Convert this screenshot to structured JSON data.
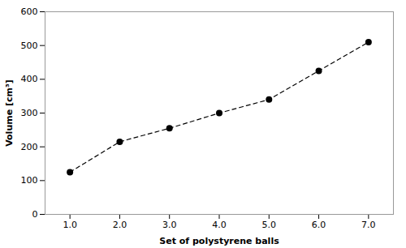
{
  "chart_data": {
    "type": "line",
    "x": [
      1,
      2,
      3,
      4,
      5,
      6,
      7
    ],
    "values": [
      125,
      215,
      255,
      300,
      340,
      425,
      510
    ],
    "xlabel": "Set of polystyrene balls",
    "ylabel": "Volume [cm³]",
    "xlim": [
      0.5,
      7.5
    ],
    "ylim": [
      0,
      600
    ],
    "xticks": [
      1,
      2,
      3,
      4,
      5,
      6,
      7
    ],
    "yticks": [
      0,
      100,
      200,
      300,
      400,
      500,
      600
    ],
    "color": "black",
    "marker": "circle",
    "line_style": "dashed",
    "grid": false
  }
}
